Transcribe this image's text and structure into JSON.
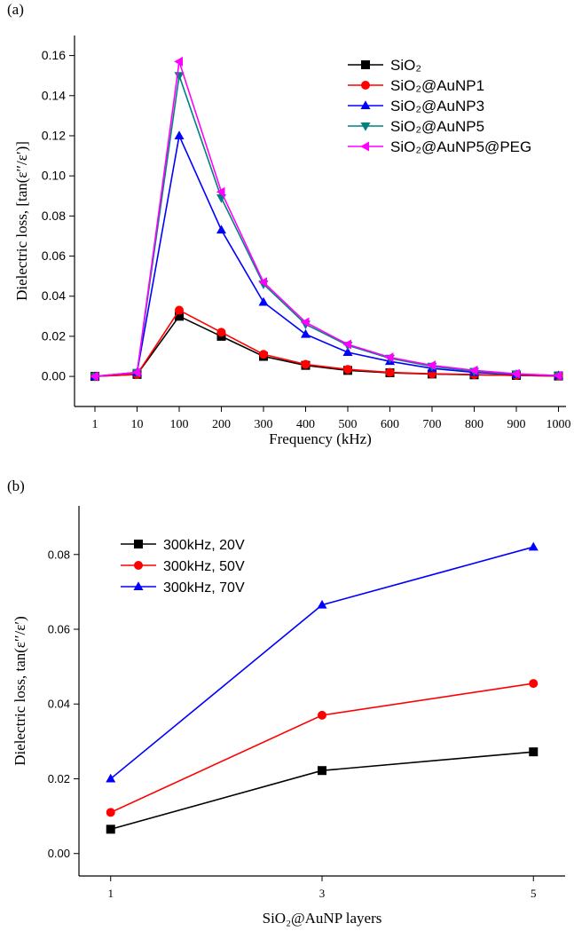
{
  "chart_data": [
    {
      "panel_label": "(a)",
      "type": "line",
      "xlabel": "Frequency (kHz)",
      "ylabel": "Dielectric loss, [tan(ε′′/ε′)]",
      "categories": [
        "1",
        "10",
        "100",
        "200",
        "300",
        "400",
        "500",
        "600",
        "700",
        "800",
        "900",
        "1000"
      ],
      "ylim": [
        -0.015,
        0.17
      ],
      "yticks": [
        "0.00",
        "0.02",
        "0.04",
        "0.06",
        "0.08",
        "0.10",
        "0.12",
        "0.14",
        "0.16"
      ],
      "legend_position": "top-right",
      "grid": false,
      "series": [
        {
          "name": "SiO₂",
          "color": "#000000",
          "marker": "square",
          "values": [
            0.0,
            0.001,
            0.03,
            0.02,
            0.01,
            0.0055,
            0.003,
            0.0018,
            0.0012,
            0.0008,
            0.0005,
            0.0002
          ]
        },
        {
          "name": "SiO₂@AuNP1",
          "color": "#ff0000",
          "marker": "circle",
          "values": [
            0.0,
            0.001,
            0.033,
            0.022,
            0.011,
            0.006,
            0.0035,
            0.002,
            0.0013,
            0.0009,
            0.0005,
            0.0002
          ]
        },
        {
          "name": "SiO₂@AuNP3",
          "color": "#0000ff",
          "marker": "triangle-up",
          "values": [
            0.0,
            0.002,
            0.12,
            0.073,
            0.037,
            0.021,
            0.012,
            0.0075,
            0.004,
            0.002,
            0.001,
            0.0004
          ]
        },
        {
          "name": "SiO₂@AuNP5",
          "color": "#008080",
          "marker": "triangle-down",
          "values": [
            0.0,
            0.002,
            0.15,
            0.089,
            0.046,
            0.026,
            0.0155,
            0.009,
            0.005,
            0.0025,
            0.0012,
            0.0004
          ]
        },
        {
          "name": "SiO₂@AuNP5@PEG",
          "color": "#ff00ff",
          "marker": "triangle-left",
          "values": [
            0.0,
            0.002,
            0.157,
            0.092,
            0.047,
            0.027,
            0.016,
            0.0095,
            0.0055,
            0.003,
            0.0013,
            0.0004
          ]
        }
      ]
    },
    {
      "panel_label": "(b)",
      "type": "line",
      "xlabel": "SiO₂@AuNP layers",
      "ylabel": "Dielectric loss, tan(ε′′/ε′)",
      "x": [
        1,
        3,
        5
      ],
      "xticks": [
        "1",
        "3",
        "5"
      ],
      "xlim": [
        0.7,
        5.3
      ],
      "ylim": [
        -0.006,
        0.093
      ],
      "yticks": [
        "0.00",
        "0.02",
        "0.04",
        "0.06",
        "0.08"
      ],
      "legend_position": "top-left",
      "grid": false,
      "series": [
        {
          "name": "300kHz, 20V",
          "color": "#000000",
          "marker": "square",
          "values": [
            0.0065,
            0.0222,
            0.0272
          ]
        },
        {
          "name": "300kHz, 50V",
          "color": "#ff0000",
          "marker": "circle",
          "values": [
            0.011,
            0.037,
            0.0455
          ]
        },
        {
          "name": "300kHz, 70V",
          "color": "#0000ff",
          "marker": "triangle-up",
          "values": [
            0.02,
            0.0665,
            0.082
          ]
        }
      ]
    }
  ]
}
